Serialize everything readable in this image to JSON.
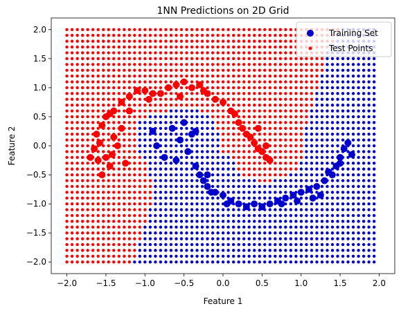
{
  "chart_data": {
    "type": "scatter",
    "title": "1NN Predictions on 2D Grid",
    "xlabel": "Feature 1",
    "ylabel": "Feature 2",
    "xlim": [
      -2.2,
      2.2
    ],
    "ylim": [
      -2.2,
      2.2
    ],
    "xticks": [
      -2.0,
      -1.5,
      -1.0,
      -0.5,
      0.0,
      0.5,
      1.0,
      1.5,
      2.0
    ],
    "yticks": [
      -2.0,
      -1.5,
      -1.0,
      -0.5,
      0.0,
      0.5,
      1.0,
      1.5,
      2.0
    ],
    "xtick_labels": [
      "−2.0",
      "−1.5",
      "−1.0",
      "−0.5",
      "0.0",
      "0.5",
      "1.0",
      "1.5",
      "2.0"
    ],
    "ytick_labels": [
      "−2.0",
      "−1.5",
      "−1.0",
      "−0.5",
      "0.0",
      "0.5",
      "1.0",
      "1.5",
      "2.0"
    ],
    "grid": false,
    "legend_position": "top-right",
    "colors": {
      "class0": "#ff0000",
      "class1": "#0000cc"
    },
    "legend": [
      {
        "label": "Training Set",
        "marker": "large-circle",
        "color": "#0000cc"
      },
      {
        "label": "Test Points",
        "marker": "small-circle",
        "color": "#ff0000"
      }
    ],
    "series": [
      {
        "name": "Training Set",
        "marker": "large-circle",
        "points": [
          [
            -1.55,
            0.35,
            0
          ],
          [
            -1.5,
            0.5,
            0
          ],
          [
            -1.45,
            0.55,
            0
          ],
          [
            -1.4,
            0.6,
            0
          ],
          [
            -1.62,
            0.2,
            0
          ],
          [
            -1.58,
            0.05,
            0
          ],
          [
            -1.65,
            -0.05,
            0
          ],
          [
            -1.7,
            -0.2,
            0
          ],
          [
            -1.5,
            -0.2,
            0
          ],
          [
            -1.42,
            -0.15,
            0
          ],
          [
            -1.35,
            0.0,
            0
          ],
          [
            -1.4,
            0.15,
            0
          ],
          [
            -1.3,
            0.3,
            0
          ],
          [
            -1.25,
            -0.3,
            0
          ],
          [
            -1.45,
            -0.35,
            0
          ],
          [
            -1.6,
            -0.25,
            0
          ],
          [
            -1.55,
            -0.5,
            0
          ],
          [
            -1.3,
            0.75,
            0
          ],
          [
            -1.2,
            0.85,
            0
          ],
          [
            -1.1,
            0.95,
            0
          ],
          [
            -1.0,
            0.95,
            0
          ],
          [
            -0.9,
            0.9,
            0
          ],
          [
            -0.8,
            0.9,
            0
          ],
          [
            -0.7,
            1.0,
            0
          ],
          [
            -0.6,
            1.05,
            0
          ],
          [
            -0.5,
            1.1,
            0
          ],
          [
            -0.4,
            1.0,
            0
          ],
          [
            -0.3,
            1.05,
            0
          ],
          [
            -0.25,
            0.95,
            0
          ],
          [
            -0.2,
            0.9,
            0
          ],
          [
            -0.1,
            0.8,
            0
          ],
          [
            0.0,
            0.75,
            0
          ],
          [
            0.1,
            0.6,
            0
          ],
          [
            0.15,
            0.55,
            0
          ],
          [
            0.2,
            0.4,
            0
          ],
          [
            0.25,
            0.3,
            0
          ],
          [
            0.3,
            0.2,
            0
          ],
          [
            0.35,
            0.15,
            0
          ],
          [
            0.4,
            0.05,
            0
          ],
          [
            0.45,
            -0.05,
            0
          ],
          [
            0.5,
            -0.1,
            0
          ],
          [
            0.55,
            -0.2,
            0
          ],
          [
            -1.2,
            0.6,
            0
          ],
          [
            -0.95,
            0.8,
            0
          ],
          [
            -0.55,
            0.85,
            0
          ],
          [
            0.45,
            0.3,
            0
          ],
          [
            0.55,
            0.0,
            0
          ],
          [
            0.6,
            -0.25,
            0
          ],
          [
            -0.9,
            0.25,
            1
          ],
          [
            -0.85,
            0.0,
            1
          ],
          [
            -0.75,
            -0.2,
            1
          ],
          [
            -0.6,
            -0.25,
            1
          ],
          [
            -0.55,
            0.1,
            1
          ],
          [
            -0.45,
            -0.1,
            1
          ],
          [
            -0.4,
            0.2,
            1
          ],
          [
            -0.5,
            0.4,
            1
          ],
          [
            -0.35,
            -0.35,
            1
          ],
          [
            -0.3,
            -0.5,
            1
          ],
          [
            -0.25,
            -0.6,
            1
          ],
          [
            -0.2,
            -0.7,
            1
          ],
          [
            -0.1,
            -0.8,
            1
          ],
          [
            0.0,
            -0.85,
            1
          ],
          [
            0.1,
            -0.95,
            1
          ],
          [
            0.2,
            -1.0,
            1
          ],
          [
            0.3,
            -1.05,
            1
          ],
          [
            0.4,
            -1.0,
            1
          ],
          [
            0.5,
            -1.05,
            1
          ],
          [
            0.6,
            -1.0,
            1
          ],
          [
            0.7,
            -0.95,
            1
          ],
          [
            0.8,
            -0.9,
            1
          ],
          [
            0.9,
            -0.85,
            1
          ],
          [
            1.0,
            -0.8,
            1
          ],
          [
            1.1,
            -0.75,
            1
          ],
          [
            1.2,
            -0.7,
            1
          ],
          [
            1.3,
            -0.6,
            1
          ],
          [
            1.4,
            -0.5,
            1
          ],
          [
            1.45,
            -0.35,
            1
          ],
          [
            1.5,
            -0.2,
            1
          ],
          [
            1.55,
            -0.05,
            1
          ],
          [
            1.6,
            0.05,
            1
          ],
          [
            1.65,
            -0.15,
            1
          ],
          [
            1.5,
            -0.3,
            1
          ],
          [
            0.95,
            -0.95,
            1
          ],
          [
            0.75,
            -1.0,
            1
          ],
          [
            0.05,
            -1.0,
            1
          ],
          [
            -0.15,
            -0.8,
            1
          ],
          [
            -0.35,
            0.25,
            1
          ],
          [
            -0.65,
            0.3,
            1
          ],
          [
            -0.2,
            -0.5,
            1
          ],
          [
            1.15,
            -0.9,
            1
          ],
          [
            1.35,
            -0.45,
            1
          ],
          [
            1.25,
            -0.85,
            1
          ]
        ]
      }
    ],
    "test_grid": {
      "name": "Test Points",
      "marker": "small-circle",
      "x_start": -2.0,
      "x_stop": 2.0,
      "x_step": 0.0667,
      "y_start": -2.0,
      "y_stop": 2.0,
      "y_step": 0.1,
      "class_regions": "class1 (blue) = lower-right region and inner crescent; class0 (red) = remainder"
    }
  }
}
